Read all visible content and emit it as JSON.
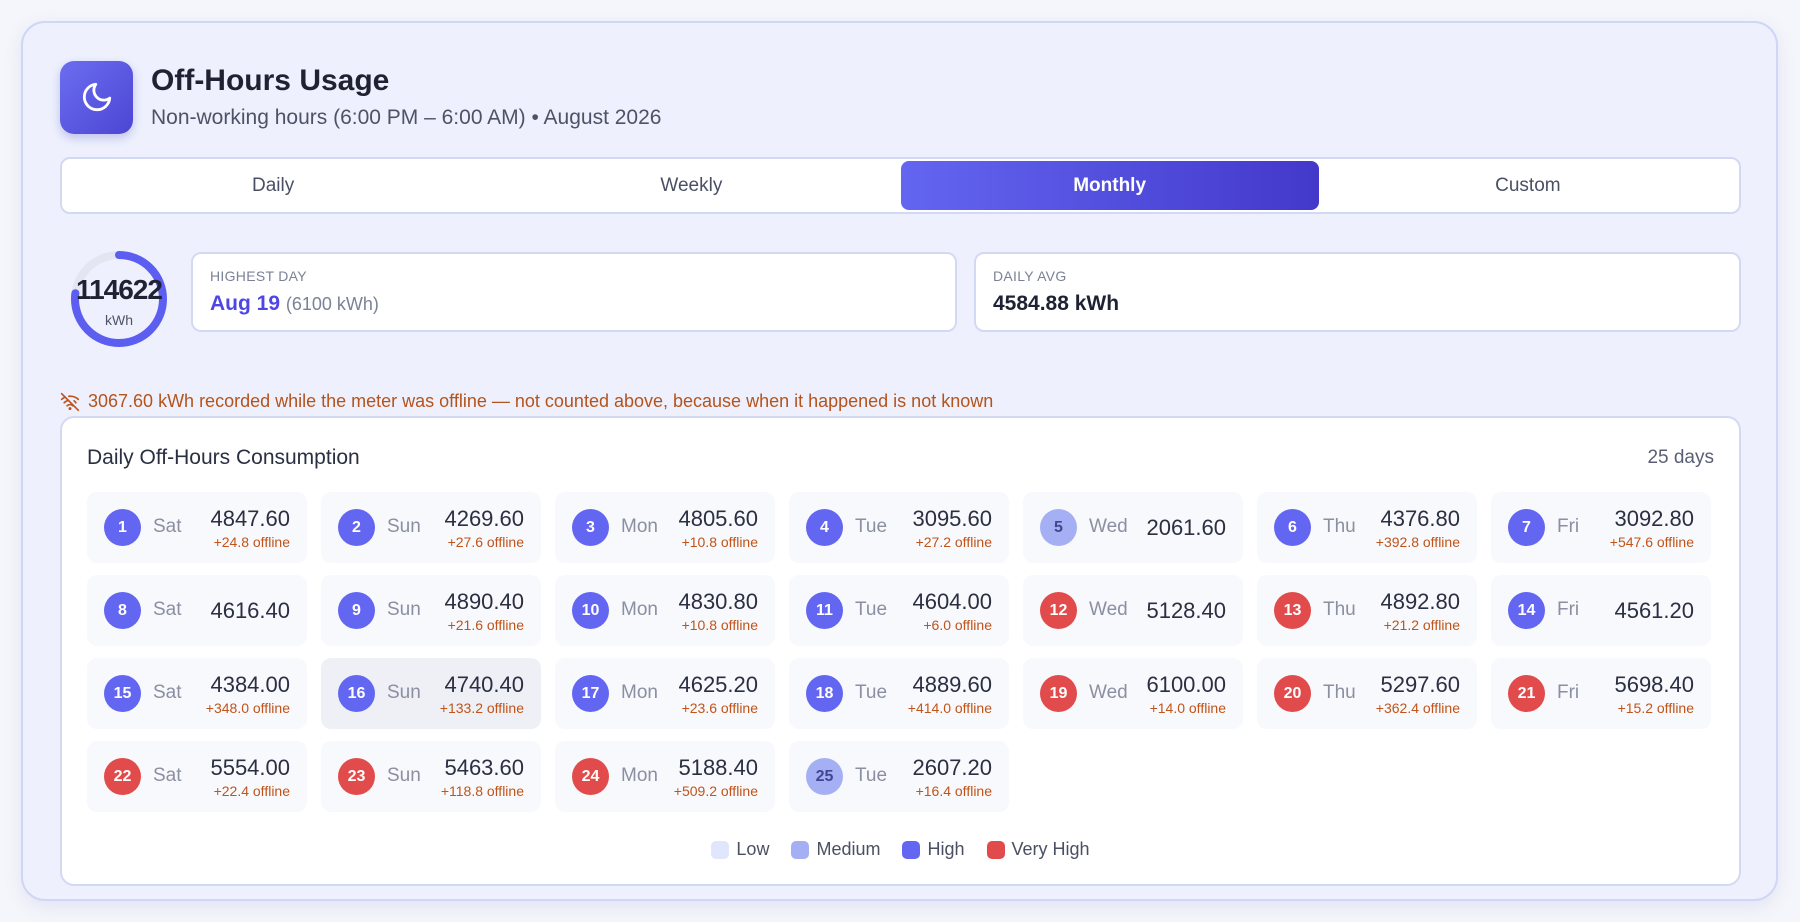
{
  "header": {
    "icon": "moon-icon",
    "title": "Off-Hours Usage",
    "subtitle": "Non-working hours (6:00 PM – 6:00 AM) • August 2026"
  },
  "tabs": [
    {
      "label": "Daily",
      "active": false
    },
    {
      "label": "Weekly",
      "active": false
    },
    {
      "label": "Monthly",
      "active": true
    },
    {
      "label": "Custom",
      "active": false
    }
  ],
  "summary": {
    "total_value": "114622",
    "total_unit": "kWh",
    "ring_fraction": 0.77,
    "highest_day_label": "HIGHEST DAY",
    "highest_day_date": "Aug 19",
    "highest_day_value": "(6100 kWh)",
    "daily_avg_label": "DAILY AVG",
    "daily_avg_value": "4584.88 kWh"
  },
  "warning": {
    "icon": "offline-icon",
    "text": "3067.60 kWh recorded while the meter was offline — not counted above, because when it happened is not known"
  },
  "panel": {
    "title": "Daily Off-Hours Consumption",
    "count": "25 days"
  },
  "days": [
    {
      "day": "1",
      "dow": "Sat",
      "value": "4847.60",
      "offline": "+24.8 offline",
      "level": "high"
    },
    {
      "day": "2",
      "dow": "Sun",
      "value": "4269.60",
      "offline": "+27.6 offline",
      "level": "high"
    },
    {
      "day": "3",
      "dow": "Mon",
      "value": "4805.60",
      "offline": "+10.8 offline",
      "level": "high"
    },
    {
      "day": "4",
      "dow": "Tue",
      "value": "3095.60",
      "offline": "+27.2 offline",
      "level": "high"
    },
    {
      "day": "5",
      "dow": "Wed",
      "value": "2061.60",
      "offline": "",
      "level": "medium"
    },
    {
      "day": "6",
      "dow": "Thu",
      "value": "4376.80",
      "offline": "+392.8 offline",
      "level": "high"
    },
    {
      "day": "7",
      "dow": "Fri",
      "value": "3092.80",
      "offline": "+547.6 offline",
      "level": "high"
    },
    {
      "day": "8",
      "dow": "Sat",
      "value": "4616.40",
      "offline": "",
      "level": "high"
    },
    {
      "day": "9",
      "dow": "Sun",
      "value": "4890.40",
      "offline": "+21.6 offline",
      "level": "high"
    },
    {
      "day": "10",
      "dow": "Mon",
      "value": "4830.80",
      "offline": "+10.8 offline",
      "level": "high"
    },
    {
      "day": "11",
      "dow": "Tue",
      "value": "4604.00",
      "offline": "+6.0 offline",
      "level": "high"
    },
    {
      "day": "12",
      "dow": "Wed",
      "value": "5128.40",
      "offline": "",
      "level": "veryhigh"
    },
    {
      "day": "13",
      "dow": "Thu",
      "value": "4892.80",
      "offline": "+21.2 offline",
      "level": "veryhigh"
    },
    {
      "day": "14",
      "dow": "Fri",
      "value": "4561.20",
      "offline": "",
      "level": "high"
    },
    {
      "day": "15",
      "dow": "Sat",
      "value": "4384.00",
      "offline": "+348.0 offline",
      "level": "high"
    },
    {
      "day": "16",
      "dow": "Sun",
      "value": "4740.40",
      "offline": "+133.2 offline",
      "level": "high"
    },
    {
      "day": "17",
      "dow": "Mon",
      "value": "4625.20",
      "offline": "+23.6 offline",
      "level": "high"
    },
    {
      "day": "18",
      "dow": "Tue",
      "value": "4889.60",
      "offline": "+414.0 offline",
      "level": "high"
    },
    {
      "day": "19",
      "dow": "Wed",
      "value": "6100.00",
      "offline": "+14.0 offline",
      "level": "veryhigh"
    },
    {
      "day": "20",
      "dow": "Thu",
      "value": "5297.60",
      "offline": "+362.4 offline",
      "level": "veryhigh"
    },
    {
      "day": "21",
      "dow": "Fri",
      "value": "5698.40",
      "offline": "+15.2 offline",
      "level": "veryhigh"
    },
    {
      "day": "22",
      "dow": "Sat",
      "value": "5554.00",
      "offline": "+22.4 offline",
      "level": "veryhigh"
    },
    {
      "day": "23",
      "dow": "Sun",
      "value": "5463.60",
      "offline": "+118.8 offline",
      "level": "veryhigh"
    },
    {
      "day": "24",
      "dow": "Mon",
      "value": "5188.40",
      "offline": "+509.2 offline",
      "level": "veryhigh"
    },
    {
      "day": "25",
      "dow": "Tue",
      "value": "2607.20",
      "offline": "+16.4 offline",
      "level": "medium"
    }
  ],
  "legend": [
    {
      "label": "Low",
      "color": "#e0e6fb"
    },
    {
      "label": "Medium",
      "color": "#a5b0f4"
    },
    {
      "label": "High",
      "color": "#6366f1"
    },
    {
      "label": "Very High",
      "color": "#e14b4b"
    }
  ],
  "colors": {
    "accent": "#6366f1",
    "very_high": "#e14b4b",
    "warning": "#b4531b"
  }
}
